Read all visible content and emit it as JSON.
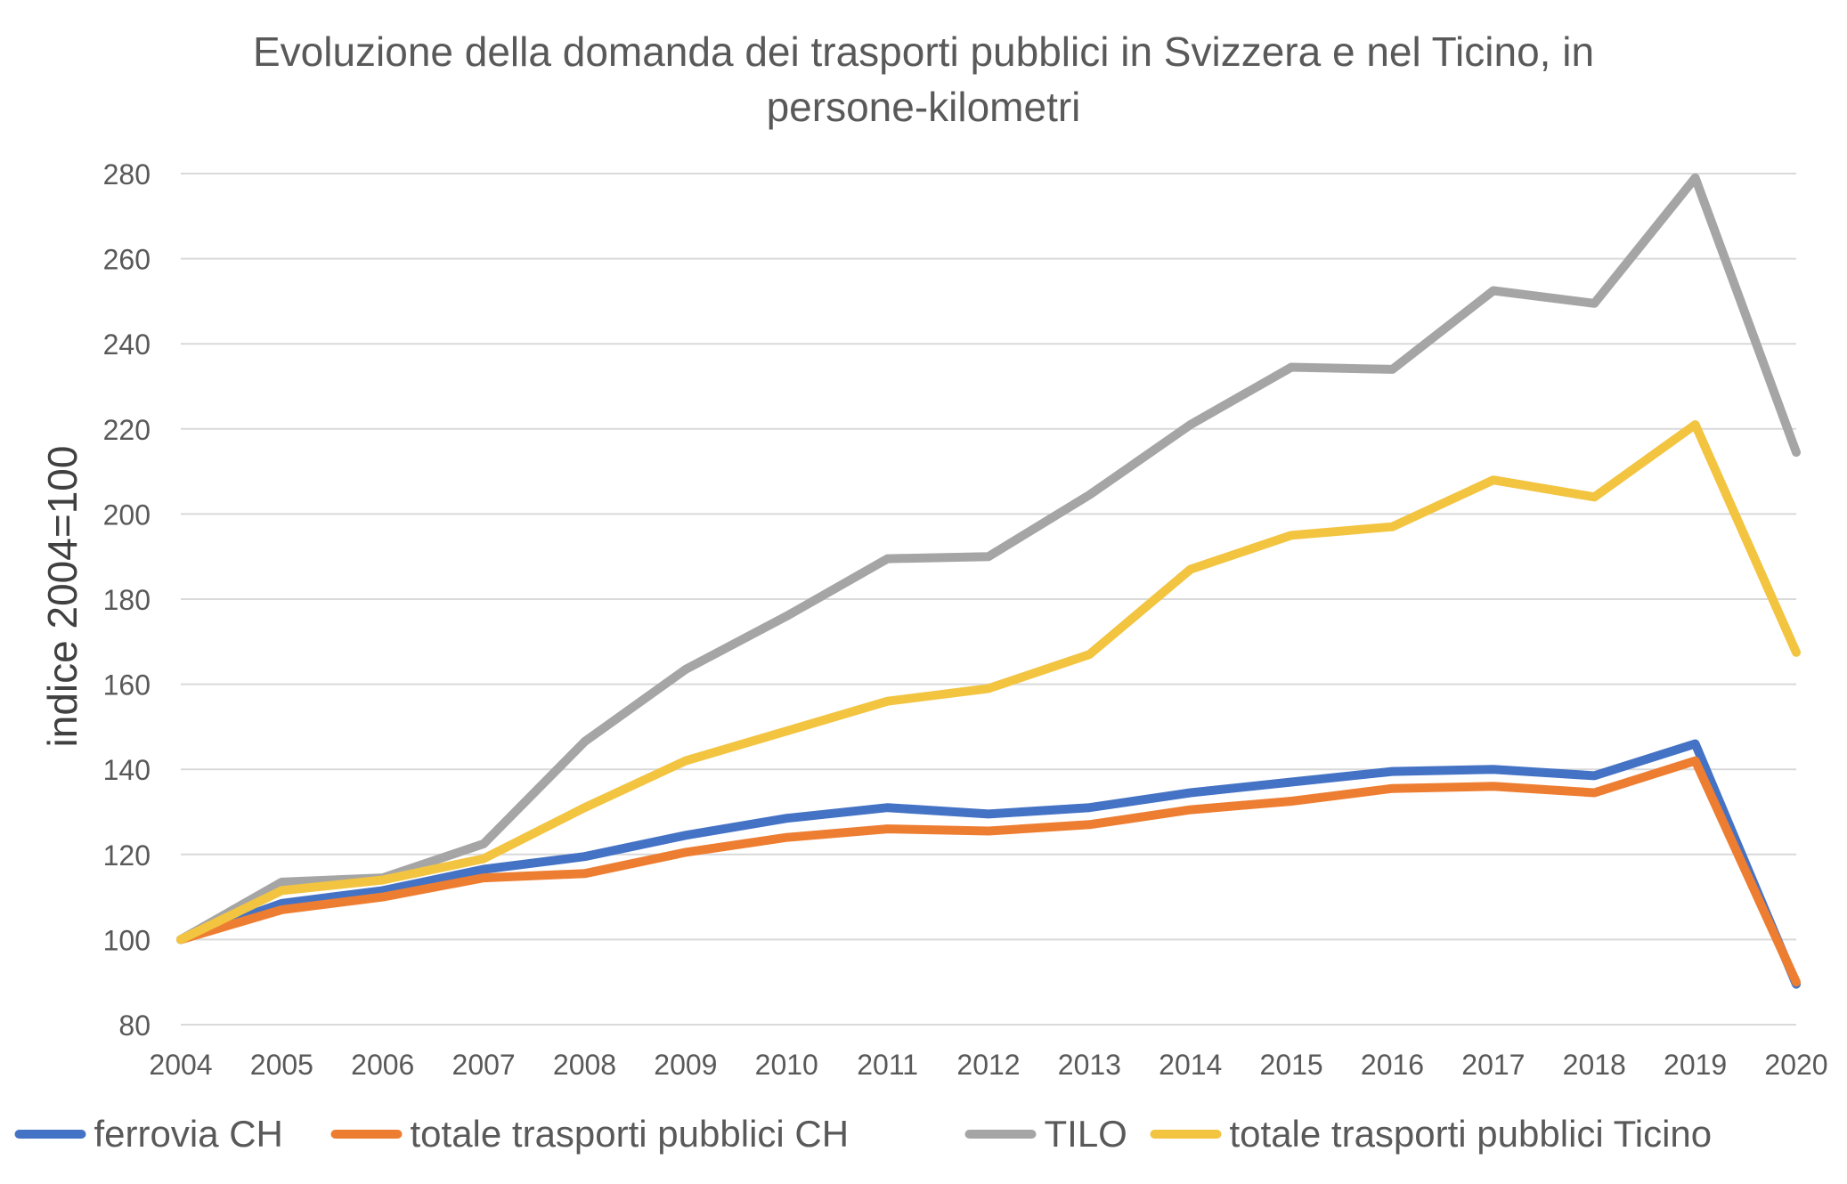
{
  "chart_data": {
    "type": "line",
    "title_line1": "Evoluzione della domanda dei trasporti pubblici in Svizzera e nel Ticino, in",
    "title_line2": "persone-kilometri",
    "xlabel": "",
    "ylabel": "indice 2004=100",
    "ylim": [
      80,
      280
    ],
    "yticks": [
      80,
      100,
      120,
      140,
      160,
      180,
      200,
      220,
      240,
      260,
      280
    ],
    "grid": true,
    "legend_position": "bottom",
    "categories": [
      "2004",
      "2005",
      "2006",
      "2007",
      "2008",
      "2009",
      "2010",
      "2011",
      "2012",
      "2013",
      "2014",
      "2015",
      "2016",
      "2017",
      "2018",
      "2019",
      "2020"
    ],
    "series": [
      {
        "name": "ferrovia CH",
        "color": "#4472C4",
        "values": [
          100,
          108.5,
          111.5,
          116.5,
          119.5,
          124.5,
          128.5,
          131,
          129.5,
          131,
          134.5,
          137,
          139.5,
          140,
          138.5,
          146,
          89.5
        ]
      },
      {
        "name": "totale trasporti pubblici CH",
        "color": "#ED7D31",
        "values": [
          100,
          107,
          110,
          114.5,
          115.5,
          120.5,
          124,
          126,
          125.5,
          127,
          130.5,
          132.5,
          135.5,
          136,
          134.5,
          142,
          90
        ]
      },
      {
        "name": "TILO",
        "color": "#A5A5A5",
        "values": [
          100,
          113.5,
          114.5,
          122.5,
          146.5,
          163.5,
          176,
          189.5,
          190,
          204.5,
          221,
          234.5,
          234,
          252.5,
          249.5,
          279,
          214.5
        ]
      },
      {
        "name": "totale trasporti pubblici Ticino",
        "color": "#F2C440",
        "values": [
          100,
          111.5,
          114,
          119,
          131,
          142,
          149,
          156,
          159,
          167,
          187,
          195,
          197,
          208,
          204,
          221,
          167.5
        ]
      }
    ]
  }
}
